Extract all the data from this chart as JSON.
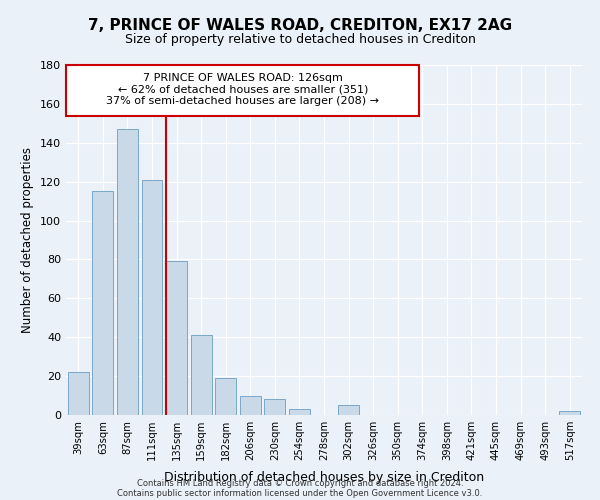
{
  "title": "7, PRINCE OF WALES ROAD, CREDITON, EX17 2AG",
  "subtitle": "Size of property relative to detached houses in Crediton",
  "xlabel": "Distribution of detached houses by size in Crediton",
  "ylabel": "Number of detached properties",
  "bar_labels": [
    "39sqm",
    "63sqm",
    "87sqm",
    "111sqm",
    "135sqm",
    "159sqm",
    "182sqm",
    "206sqm",
    "230sqm",
    "254sqm",
    "278sqm",
    "302sqm",
    "326sqm",
    "350sqm",
    "374sqm",
    "398sqm",
    "421sqm",
    "445sqm",
    "469sqm",
    "493sqm",
    "517sqm"
  ],
  "bar_values": [
    22,
    115,
    147,
    121,
    79,
    41,
    19,
    10,
    8,
    3,
    0,
    5,
    0,
    0,
    0,
    0,
    0,
    0,
    0,
    0,
    2
  ],
  "bar_color": "#c9d9e8",
  "bar_edgecolor": "#7aa8c9",
  "vline_pos": 3.58,
  "property_line_label": "7 PRINCE OF WALES ROAD: 126sqm",
  "annotation_line1": "← 62% of detached houses are smaller (351)",
  "annotation_line2": "37% of semi-detached houses are larger (208) →",
  "vline_color": "#cc0000",
  "ylim": [
    0,
    180
  ],
  "yticks": [
    0,
    20,
    40,
    60,
    80,
    100,
    120,
    140,
    160,
    180
  ],
  "footnote1": "Contains HM Land Registry data © Crown copyright and database right 2024.",
  "footnote2": "Contains public sector information licensed under the Open Government Licence v3.0.",
  "bg_color": "#eaf1f8",
  "plot_bg_color": "#eaf1f8"
}
